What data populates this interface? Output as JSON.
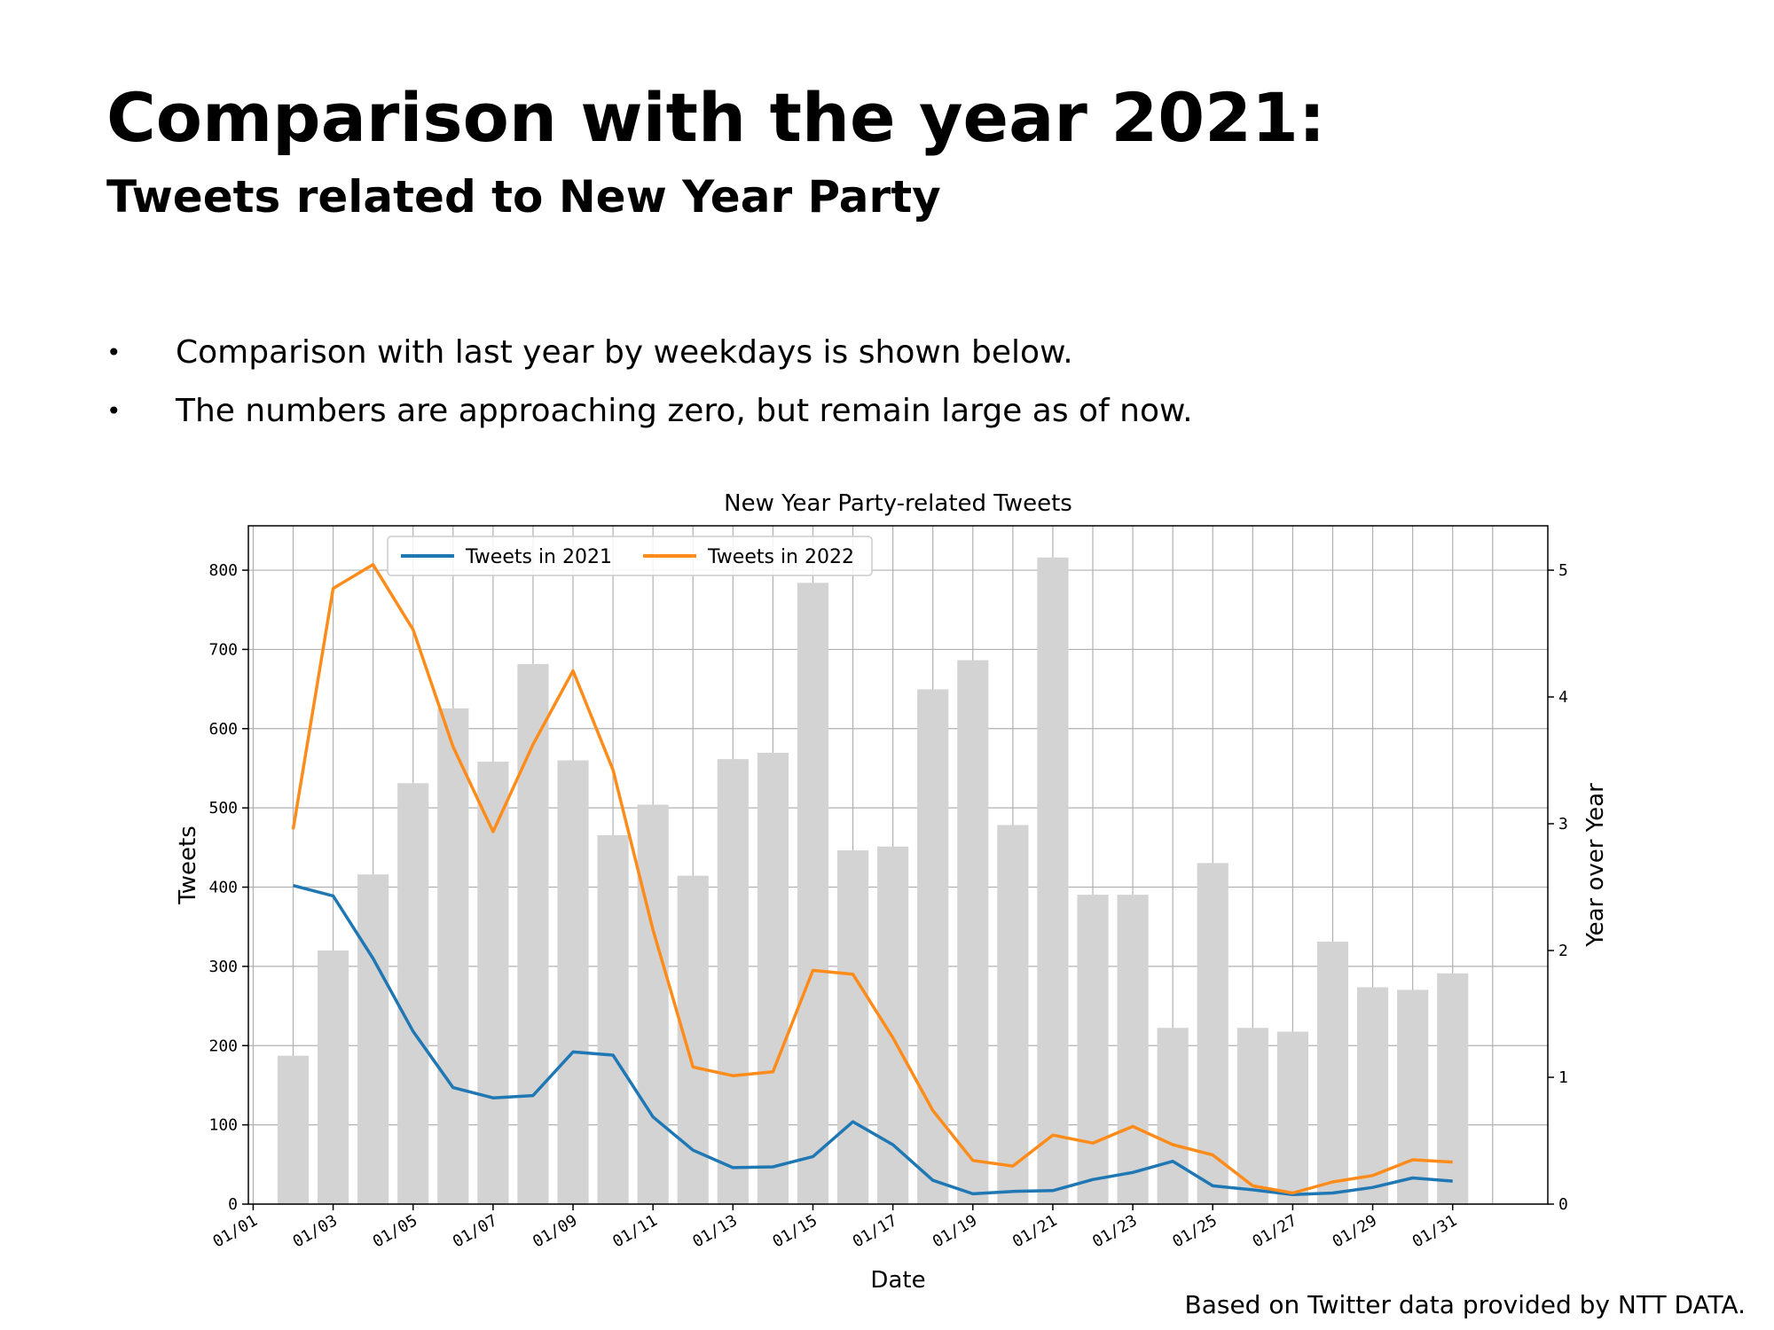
{
  "slide": {
    "title": "Comparison with the year 2021:",
    "subtitle": "Tweets related to New Year Party",
    "bullet_symbol": "•",
    "bullets": [
      "Comparison with last year by weekdays is shown below.",
      "The numbers are approaching zero, but remain large as of now."
    ],
    "footnote": "Based on Twitter data provided by NTT DATA."
  },
  "chart_data": {
    "type": "line",
    "title": "New Year Party-related Tweets",
    "xlabel": "Date",
    "ylabel": "Tweets",
    "y2label": "Year over Year",
    "xlim": [
      1,
      32
    ],
    "ylim": [
      0,
      856
    ],
    "y2lim": [
      0,
      5.35
    ],
    "grid": true,
    "legend_position": "top-left",
    "x_tick_labels": [
      {
        "day": 1,
        "label": "01/01"
      },
      {
        "day": 3,
        "label": "01/03"
      },
      {
        "day": 5,
        "label": "01/05"
      },
      {
        "day": 7,
        "label": "01/07"
      },
      {
        "day": 9,
        "label": "01/09"
      },
      {
        "day": 11,
        "label": "01/11"
      },
      {
        "day": 13,
        "label": "01/13"
      },
      {
        "day": 15,
        "label": "01/15"
      },
      {
        "day": 17,
        "label": "01/17"
      },
      {
        "day": 19,
        "label": "01/19"
      },
      {
        "day": 21,
        "label": "01/21"
      },
      {
        "day": 23,
        "label": "01/23"
      },
      {
        "day": 25,
        "label": "01/25"
      },
      {
        "day": 27,
        "label": "01/27"
      },
      {
        "day": 29,
        "label": "01/29"
      },
      {
        "day": 31,
        "label": "01/31"
      }
    ],
    "y_ticks": [
      0,
      100,
      200,
      300,
      400,
      500,
      600,
      700,
      800
    ],
    "y2_ticks": [
      0,
      1,
      2,
      3,
      4,
      5
    ],
    "days": [
      2,
      3,
      4,
      5,
      6,
      7,
      8,
      9,
      10,
      11,
      12,
      13,
      14,
      15,
      16,
      17,
      18,
      19,
      20,
      21,
      22,
      23,
      24,
      25,
      26,
      27,
      28,
      29,
      30,
      31
    ],
    "bars": {
      "axis": "Year over Year",
      "color": "#d3d3d3",
      "values": [
        1.17,
        2.0,
        2.6,
        3.32,
        3.91,
        3.49,
        4.26,
        3.5,
        2.91,
        3.15,
        2.59,
        3.51,
        3.56,
        4.9,
        2.79,
        2.82,
        4.06,
        4.29,
        2.99,
        5.1,
        2.44,
        2.44,
        1.39,
        2.69,
        1.39,
        1.36,
        2.07,
        1.71,
        1.69,
        1.82
      ]
    },
    "series": [
      {
        "name": "Tweets in 2021",
        "color": "#1f77b4",
        "values": [
          402,
          389,
          310,
          218,
          147,
          134,
          137,
          192,
          188,
          110,
          68,
          46,
          47,
          60,
          104,
          75,
          30,
          13,
          16,
          17,
          31,
          40,
          54,
          23,
          18,
          12,
          14,
          21,
          33,
          29
        ]
      },
      {
        "name": "Tweets in 2022",
        "color": "#ff8c1a",
        "values": [
          473,
          777,
          807,
          725,
          577,
          470,
          580,
          673,
          548,
          346,
          173,
          162,
          167,
          295,
          290,
          210,
          118,
          55,
          48,
          87,
          77,
          98,
          75,
          62,
          23,
          14,
          28,
          36,
          56,
          53
        ]
      }
    ]
  }
}
